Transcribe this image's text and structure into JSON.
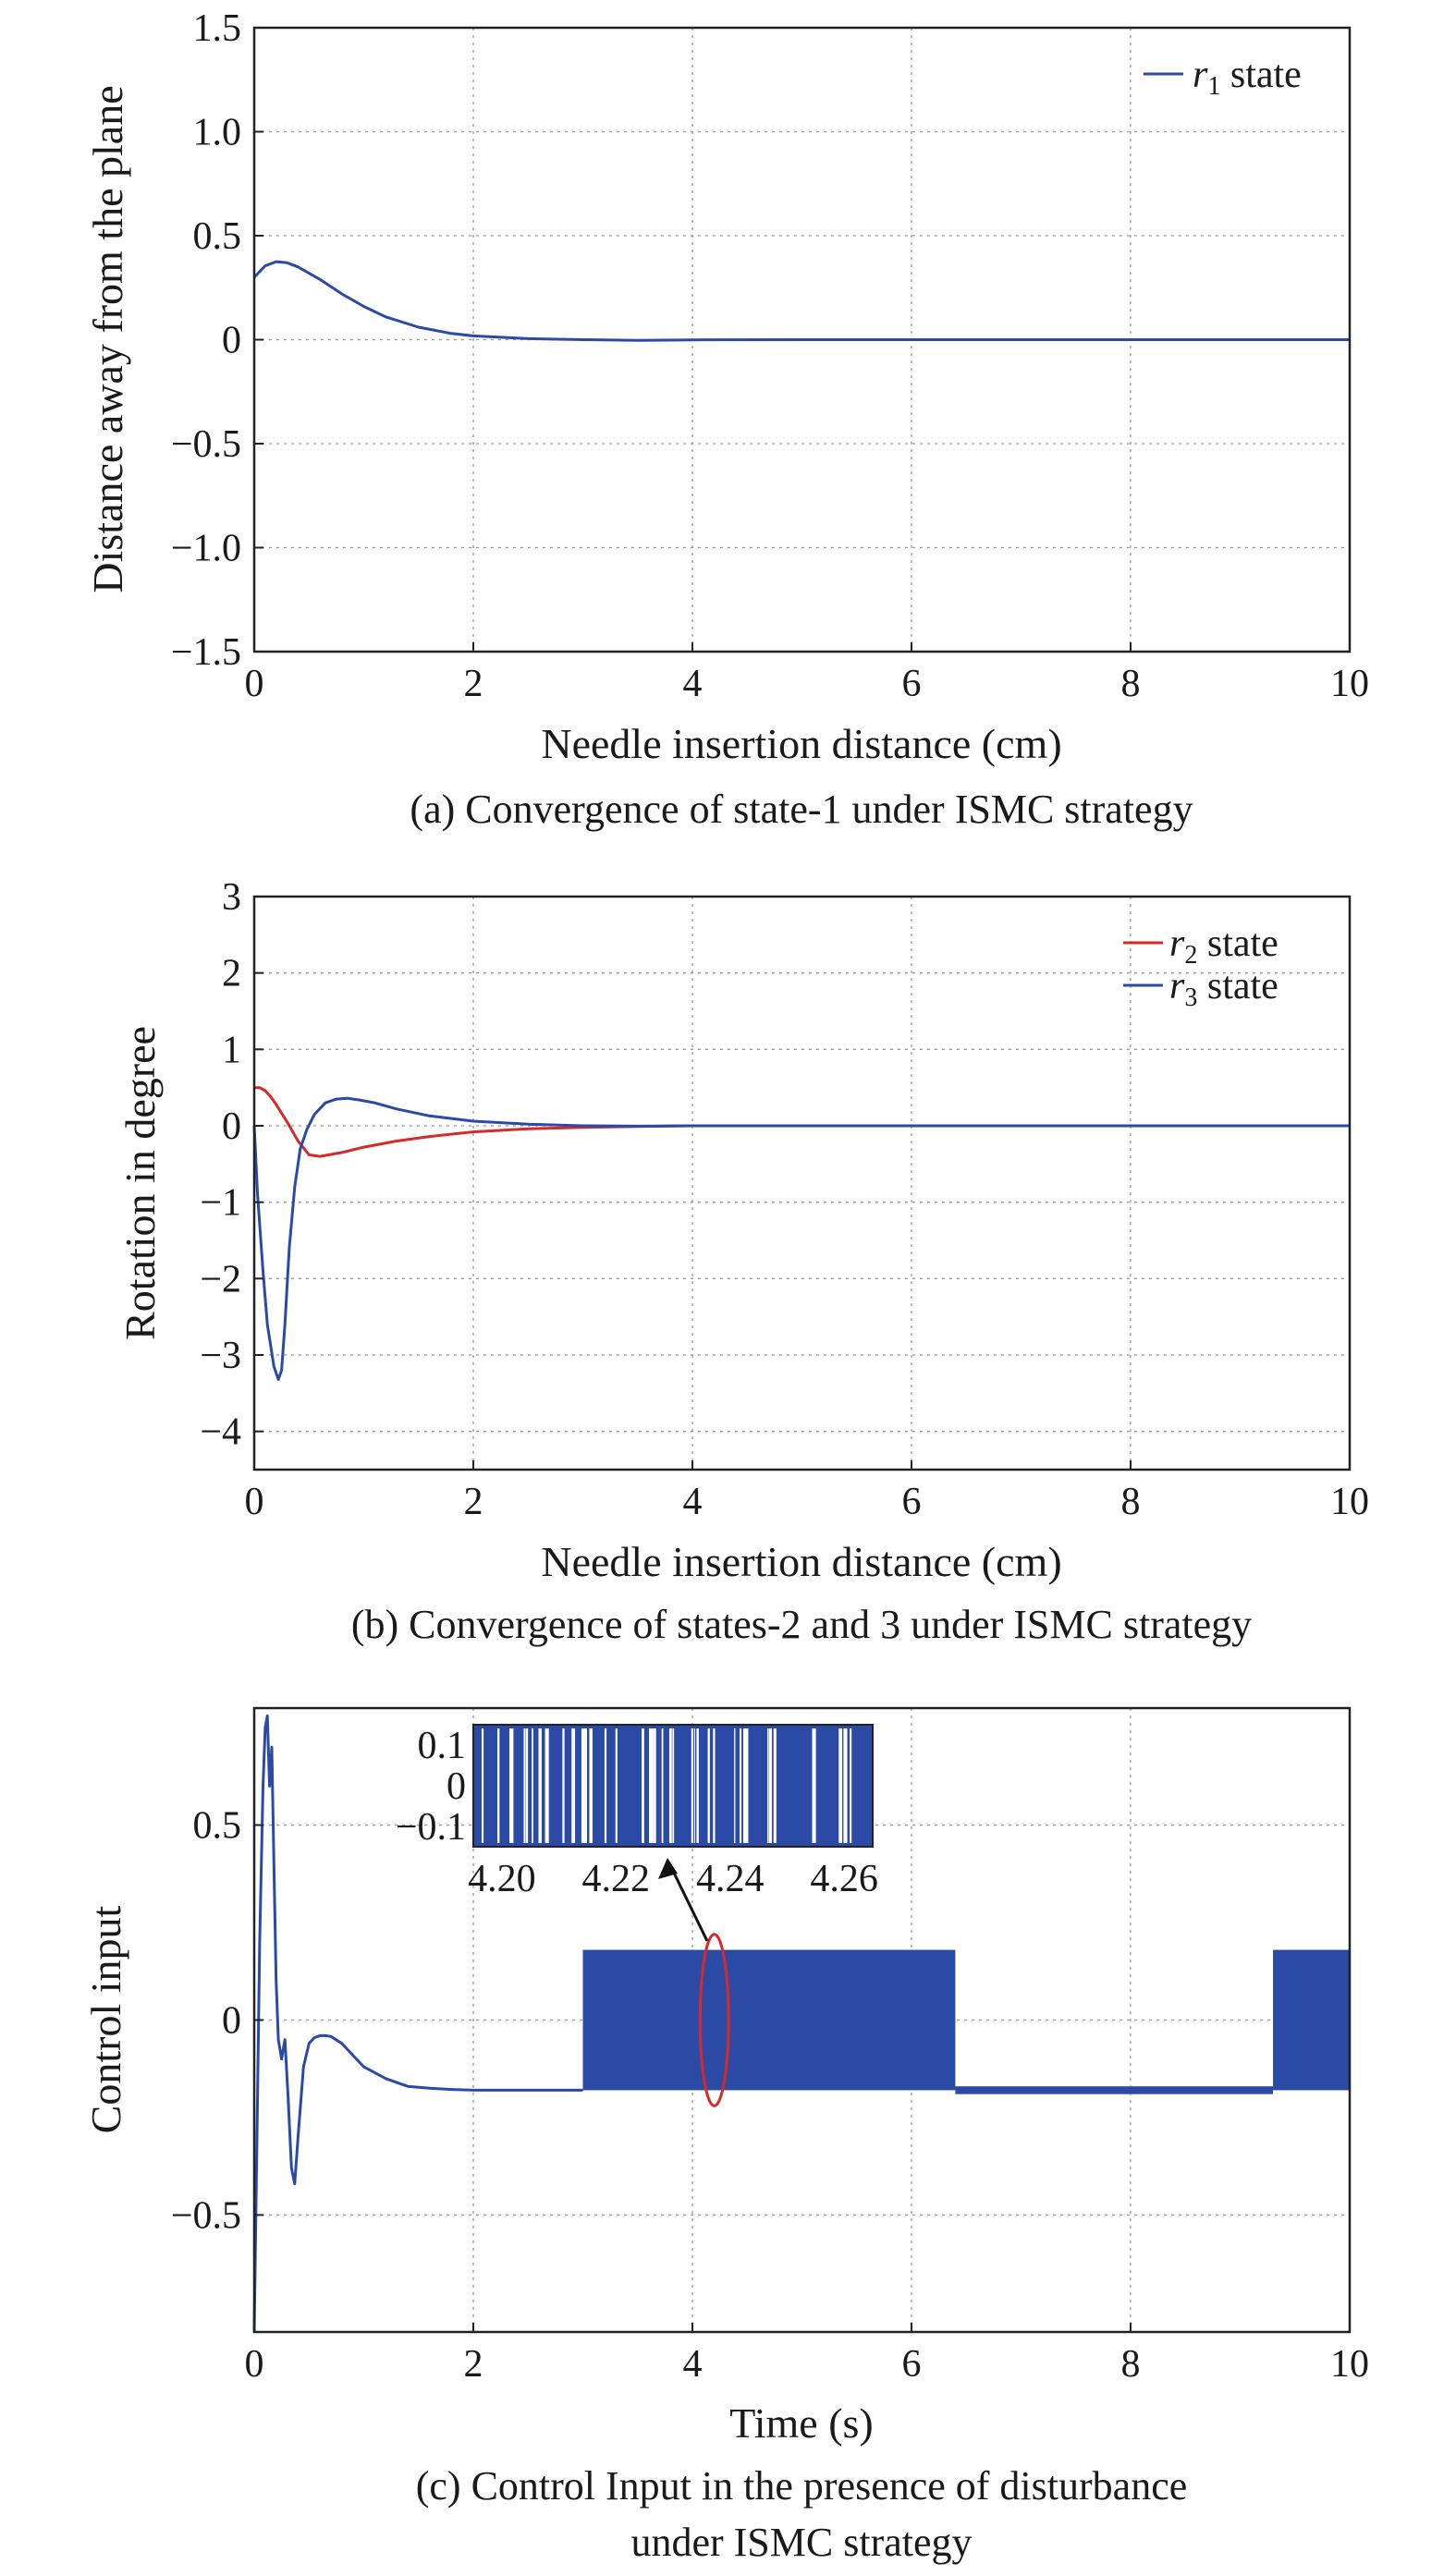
{
  "chart_data": [
    {
      "type": "line",
      "caption": "(a) Convergence of state-1 under ISMC strategy",
      "xlabel": "Needle insertion distance (cm)",
      "ylabel": "Distance away from the plane",
      "xlim": [
        0,
        10
      ],
      "ylim": [
        -1.5,
        1.5
      ],
      "xticks": [
        "0",
        "2",
        "4",
        "6",
        "8",
        "10"
      ],
      "yticks": [
        "1.5",
        "1.0",
        "0.5",
        "0",
        "−0.5",
        "−1.0",
        "−1.5"
      ],
      "ytick_values": [
        1.5,
        1.0,
        0.5,
        0,
        -0.5,
        -1.0,
        -1.5
      ],
      "grid": true,
      "legend_position": "top-right",
      "series": [
        {
          "name": "r1 state",
          "legend_main": "r",
          "legend_sub": "1",
          "legend_rest": " state",
          "color": "#2b4aa6",
          "x": [
            0,
            0.1,
            0.2,
            0.3,
            0.4,
            0.6,
            0.8,
            1.0,
            1.2,
            1.5,
            1.8,
            2.0,
            2.5,
            3.0,
            3.5,
            4.0,
            5.0,
            6.0,
            8.0,
            10.0
          ],
          "y": [
            0.3,
            0.355,
            0.375,
            0.37,
            0.35,
            0.29,
            0.22,
            0.16,
            0.11,
            0.06,
            0.03,
            0.018,
            0.005,
            0.0,
            -0.003,
            -0.001,
            0,
            0,
            0,
            0
          ]
        }
      ]
    },
    {
      "type": "line",
      "caption": "(b) Convergence of states-2 and 3 under ISMC strategy",
      "xlabel": "Needle insertion distance (cm)",
      "ylabel": "Rotation in degree",
      "xlim": [
        0,
        10
      ],
      "ylim": [
        -4.5,
        3
      ],
      "xticks": [
        "0",
        "2",
        "4",
        "6",
        "8",
        "10"
      ],
      "yticks": [
        "3",
        "2",
        "1",
        "0",
        "−1",
        "−2",
        "−3",
        "−4"
      ],
      "ytick_values": [
        3,
        2,
        1,
        0,
        -1,
        -2,
        -3,
        -4
      ],
      "grid": true,
      "legend_position": "top-right",
      "series": [
        {
          "name": "r2 state",
          "legend_main": "r",
          "legend_sub": "2",
          "legend_rest": " state",
          "color": "#d42a2a",
          "x": [
            0,
            0.05,
            0.1,
            0.15,
            0.2,
            0.3,
            0.4,
            0.5,
            0.6,
            0.8,
            1.0,
            1.3,
            1.6,
            2.0,
            2.5,
            3.0,
            3.5,
            4.0,
            5.0,
            7.0,
            10.0
          ],
          "y": [
            0.5,
            0.5,
            0.46,
            0.38,
            0.28,
            0.05,
            -0.2,
            -0.38,
            -0.4,
            -0.35,
            -0.28,
            -0.2,
            -0.14,
            -0.08,
            -0.04,
            -0.02,
            -0.01,
            0,
            0,
            0,
            0
          ]
        },
        {
          "name": "r3 state",
          "legend_main": "r",
          "legend_sub": "3",
          "legend_rest": " state",
          "color": "#2b4aa6",
          "x": [
            0,
            0.03,
            0.08,
            0.12,
            0.18,
            0.22,
            0.25,
            0.28,
            0.32,
            0.37,
            0.42,
            0.48,
            0.55,
            0.65,
            0.75,
            0.85,
            0.95,
            1.1,
            1.3,
            1.6,
            2.0,
            2.5,
            3.0,
            3.5,
            4.0,
            5.0,
            7.0,
            10.0
          ],
          "y": [
            0,
            -0.9,
            -1.9,
            -2.6,
            -3.15,
            -3.32,
            -3.2,
            -2.6,
            -1.6,
            -0.8,
            -0.3,
            -0.05,
            0.15,
            0.3,
            0.35,
            0.36,
            0.34,
            0.3,
            0.22,
            0.13,
            0.06,
            0.02,
            0.0,
            -0.005,
            0,
            0,
            0,
            0
          ]
        }
      ]
    },
    {
      "type": "line",
      "caption_line1": "(c) Control Input in the presence of disturbance",
      "caption_line2": "under ISMC strategy",
      "xlabel": "Time (s)",
      "ylabel": "Control input",
      "xlim": [
        0,
        10
      ],
      "ylim": [
        -0.8,
        0.8
      ],
      "xticks": [
        "0",
        "2",
        "4",
        "6",
        "8",
        "10"
      ],
      "yticks": [
        "0.5",
        "0",
        "−0.5"
      ],
      "ytick_values": [
        0.5,
        0,
        -0.5
      ],
      "grid": true,
      "series": [
        {
          "name": "",
          "color": "#2b4aa6",
          "x": [
            0,
            0.02,
            0.05,
            0.08,
            0.1,
            0.12,
            0.14,
            0.16,
            0.18,
            0.2,
            0.22,
            0.25,
            0.28,
            0.31,
            0.34,
            0.37,
            0.4,
            0.45,
            0.5,
            0.55,
            0.6,
            0.65,
            0.7,
            0.8,
            0.9,
            1.0,
            1.2,
            1.4,
            1.6,
            1.8,
            2.0,
            2.5,
            3.0
          ],
          "y": [
            -0.8,
            -0.4,
            0.2,
            0.6,
            0.75,
            0.78,
            0.6,
            0.7,
            0.4,
            0.1,
            -0.05,
            -0.1,
            -0.05,
            -0.2,
            -0.38,
            -0.42,
            -0.3,
            -0.12,
            -0.06,
            -0.045,
            -0.04,
            -0.04,
            -0.042,
            -0.06,
            -0.09,
            -0.12,
            -0.15,
            -0.17,
            -0.175,
            -0.178,
            -0.18,
            -0.18,
            -0.18
          ]
        }
      ],
      "chattering_bands": [
        {
          "x0": 3.0,
          "x1": 6.4,
          "ymin": -0.18,
          "ymax": 0.18
        },
        {
          "x0": 6.4,
          "x1": 9.3,
          "ymin": -0.19,
          "ymax": -0.17
        },
        {
          "x0": 9.3,
          "x1": 10.0,
          "ymin": -0.18,
          "ymax": 0.18
        }
      ],
      "highlight_ellipse": {
        "cx": 4.2,
        "cy": 0.0,
        "rx": 0.13,
        "ry": 0.22,
        "color": "#d42a2a"
      },
      "inset": {
        "xlim": [
          4.195,
          4.265
        ],
        "ylim": [
          -0.15,
          0.15
        ],
        "xticks": [
          "4.20",
          "4.22",
          "4.24",
          "4.26"
        ],
        "xtick_values": [
          4.2,
          4.22,
          4.24,
          4.26
        ],
        "yticks": [
          "0.1",
          "0",
          "−0.1"
        ],
        "ytick_values": [
          0.1,
          0,
          -0.1
        ],
        "color": "#2b4aa6"
      }
    }
  ]
}
